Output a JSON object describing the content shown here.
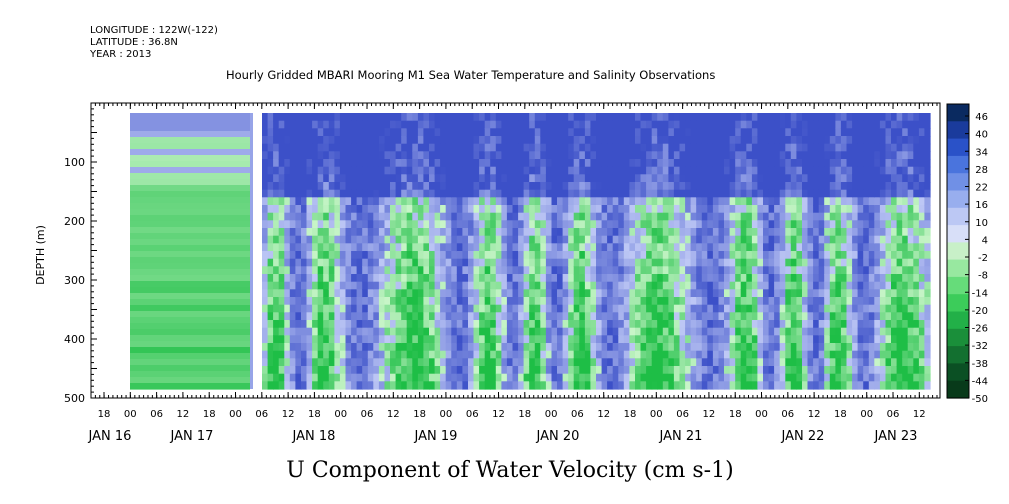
{
  "header": {
    "longitude": "LONGITUDE : 122W(-122)",
    "latitude": "LATITUDE : 36.8N",
    "year": "YEAR : 2013"
  },
  "chart_data": {
    "type": "heatmap",
    "title": "Hourly Gridded MBARI Mooring M1 Sea Water Temperature and Salinity Observations",
    "xlabel": "U Component of Water Velocity (cm s-1)",
    "ylabel": "DEPTH (m)",
    "y_range": [
      0,
      500
    ],
    "y_ticks": [
      100,
      200,
      300,
      400,
      500
    ],
    "y_inverted": true,
    "x_hour_ticks": [
      "18",
      "00",
      "06",
      "12",
      "18",
      "00",
      "06",
      "12",
      "18",
      "00",
      "06",
      "12",
      "18",
      "00",
      "06",
      "12",
      "18",
      "00",
      "06",
      "12",
      "18",
      "00",
      "06",
      "12",
      "18",
      "00",
      "06",
      "12",
      "18",
      "00",
      "06",
      "12"
    ],
    "x_date_labels": [
      "JAN 16",
      "JAN 17",
      "JAN 18",
      "JAN 19",
      "JAN 20",
      "JAN 21",
      "JAN 22",
      "JAN 23"
    ],
    "colorbar": {
      "min": -50,
      "max": 50,
      "labels": [
        "46",
        "40",
        "34",
        "28",
        "22",
        "16",
        "10",
        "4",
        "-2",
        "-8",
        "-14",
        "-20",
        "-26",
        "-32",
        "-38",
        "-44",
        "-50"
      ],
      "colors": [
        "#0a2a60",
        "#1a3b9c",
        "#2a52c8",
        "#4a74dd",
        "#7090e6",
        "#98aeee",
        "#bcc8f4",
        "#d8dff8",
        "#c8f0c8",
        "#98e8a0",
        "#66dc7a",
        "#3ccc5a",
        "#22b048",
        "#1a8f3a",
        "#137030",
        "#0b5024",
        "#083a1a"
      ]
    },
    "field_description_values": {
      "dominant_negative": -8,
      "dominant_positive": 6
    }
  }
}
